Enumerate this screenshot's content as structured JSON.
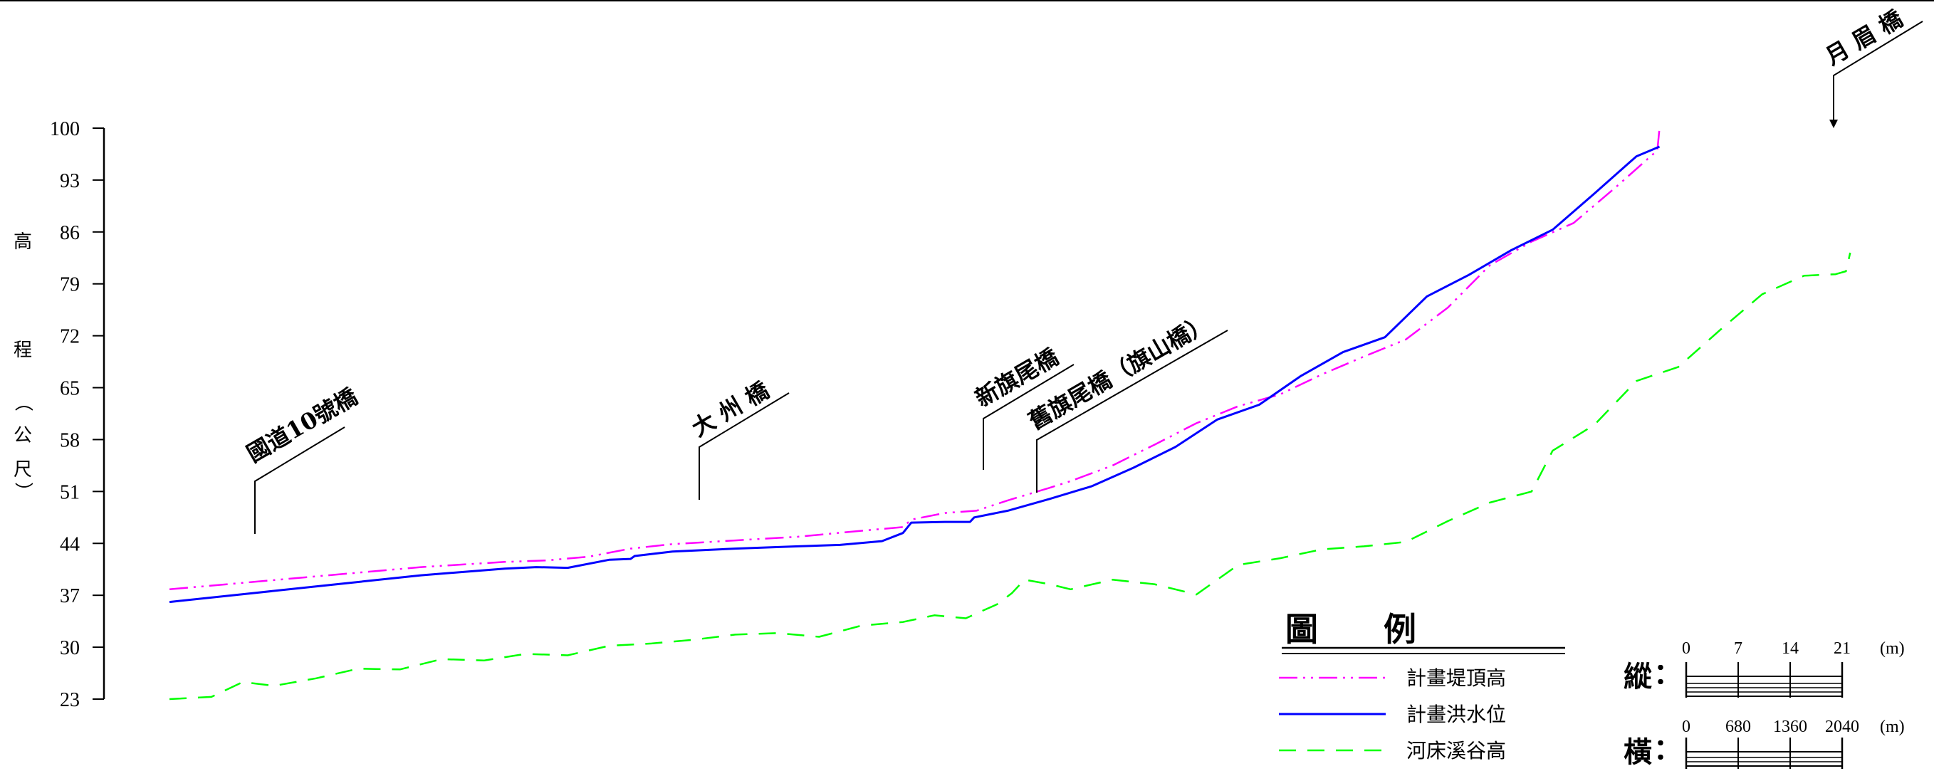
{
  "chart_data": {
    "type": "line",
    "title": "",
    "ylabel": "高程（公尺）",
    "ylabel_chars": [
      "高",
      "程",
      "（",
      "公",
      "尺",
      "）"
    ],
    "ylim": [
      23,
      100
    ],
    "yticks": [
      23,
      30,
      37,
      44,
      51,
      58,
      65,
      72,
      79,
      86,
      93,
      100
    ],
    "grid": false,
    "legend_position": "bottom-right",
    "series": [
      {
        "name": "計畫堤頂高",
        "color": "#ff00ff",
        "style": "dash-dot-dot",
        "points": [
          [
            0,
            37.8
          ],
          [
            4,
            38.8
          ],
          [
            8,
            39.8
          ],
          [
            12,
            40.8
          ],
          [
            16,
            41.5
          ],
          [
            18,
            41.7
          ],
          [
            20,
            42.2
          ],
          [
            22,
            43.3
          ],
          [
            24,
            43.9
          ],
          [
            27,
            44.4
          ],
          [
            30,
            44.9
          ],
          [
            33,
            45.7
          ],
          [
            35,
            46.2
          ],
          [
            35.4,
            47.2
          ],
          [
            37,
            48.1
          ],
          [
            38.5,
            48.4
          ],
          [
            40,
            49.8
          ],
          [
            42,
            51.5
          ],
          [
            43,
            52.4
          ],
          [
            45,
            54.5
          ],
          [
            47,
            57.3
          ],
          [
            49,
            60.2
          ],
          [
            51,
            62.5
          ],
          [
            53,
            64.1
          ],
          [
            55,
            66.8
          ],
          [
            57,
            69.2
          ],
          [
            59,
            71.5
          ],
          [
            61,
            75.8
          ],
          [
            63,
            81.5
          ],
          [
            65,
            84.7
          ],
          [
            67,
            87.2
          ],
          [
            69,
            92.0
          ],
          [
            71,
            97.0
          ],
          [
            71.1,
            100.0
          ]
        ]
      },
      {
        "name": "計畫洪水位",
        "color": "#0000ff",
        "style": "solid",
        "points": [
          [
            0,
            36.1
          ],
          [
            4,
            37.3
          ],
          [
            8,
            38.5
          ],
          [
            12,
            39.7
          ],
          [
            16,
            40.6
          ],
          [
            17.5,
            40.8
          ],
          [
            19,
            40.7
          ],
          [
            21,
            41.8
          ],
          [
            22,
            41.9
          ],
          [
            22.2,
            42.3
          ],
          [
            24,
            42.9
          ],
          [
            27,
            43.3
          ],
          [
            30,
            43.6
          ],
          [
            32,
            43.8
          ],
          [
            34,
            44.3
          ],
          [
            35,
            45.4
          ],
          [
            35.4,
            46.8
          ],
          [
            37,
            46.9
          ],
          [
            38.2,
            46.9
          ],
          [
            38.4,
            47.5
          ],
          [
            40,
            48.4
          ],
          [
            42,
            50.0
          ],
          [
            44,
            51.7
          ],
          [
            46,
            54.2
          ],
          [
            48,
            57.0
          ],
          [
            50,
            60.7
          ],
          [
            52,
            62.7
          ],
          [
            54,
            66.6
          ],
          [
            56,
            69.8
          ],
          [
            58,
            71.8
          ],
          [
            60,
            77.3
          ],
          [
            62,
            80.2
          ],
          [
            64,
            83.5
          ],
          [
            66,
            86.3
          ],
          [
            68,
            91.2
          ],
          [
            70,
            96.2
          ],
          [
            71.1,
            97.5
          ]
        ]
      },
      {
        "name": "河床溪谷高",
        "color": "#00ff00",
        "style": "dashed",
        "points": [
          [
            0,
            23.0
          ],
          [
            2,
            23.3
          ],
          [
            3.5,
            25.3
          ],
          [
            5,
            24.8
          ],
          [
            7,
            25.8
          ],
          [
            9,
            27.1
          ],
          [
            11,
            27.0
          ],
          [
            13,
            28.4
          ],
          [
            15,
            28.2
          ],
          [
            17,
            29.1
          ],
          [
            19,
            28.9
          ],
          [
            21,
            30.2
          ],
          [
            23,
            30.5
          ],
          [
            25,
            31.0
          ],
          [
            27,
            31.7
          ],
          [
            29,
            31.9
          ],
          [
            31,
            31.4
          ],
          [
            33,
            32.9
          ],
          [
            35,
            33.4
          ],
          [
            36.5,
            34.3
          ],
          [
            38,
            33.9
          ],
          [
            39.5,
            35.8
          ],
          [
            40.2,
            37.3
          ],
          [
            40.8,
            39.1
          ],
          [
            42,
            38.5
          ],
          [
            43,
            37.8
          ],
          [
            45,
            39.1
          ],
          [
            47,
            38.5
          ],
          [
            49,
            37.1
          ],
          [
            51,
            41.1
          ],
          [
            53,
            42.0
          ],
          [
            55,
            43.2
          ],
          [
            57,
            43.6
          ],
          [
            59,
            44.2
          ],
          [
            61,
            47.0
          ],
          [
            63,
            49.5
          ],
          [
            65,
            51.0
          ],
          [
            66,
            56.5
          ],
          [
            68,
            60.0
          ],
          [
            70,
            65.9
          ],
          [
            72,
            67.8
          ],
          [
            74,
            72.8
          ],
          [
            76,
            77.6
          ],
          [
            78,
            80.1
          ],
          [
            79.5,
            80.3
          ],
          [
            80,
            80.7
          ],
          [
            80.2,
            83.2
          ]
        ]
      }
    ],
    "annotations": [
      {
        "text": "國道10號橋",
        "x": 4
      },
      {
        "text": "大 州 橋",
        "x": 22
      },
      {
        "text": "新旗尾橋",
        "x": 35.6
      },
      {
        "text": "舊旗尾橋（旗山橋）",
        "x": 37.8
      },
      {
        "text": "月 眉 橋",
        "x": 71.1
      }
    ]
  },
  "legend": {
    "title": "圖　　例",
    "items": [
      {
        "label": "計畫堤頂高",
        "color": "#ff00ff",
        "style": "dash-dot-dot"
      },
      {
        "label": "計畫洪水位",
        "color": "#0000ff",
        "style": "solid"
      },
      {
        "label": "河床溪谷高",
        "color": "#00ff00",
        "style": "dashed"
      }
    ]
  },
  "scales": {
    "vertical": {
      "label": "縱",
      "colon": "：",
      "ticks": [
        "0",
        "7",
        "14",
        "21"
      ],
      "unit": "(m)"
    },
    "horizontal": {
      "label": "橫",
      "colon": "：",
      "ticks": [
        "0",
        "680",
        "1360",
        "2040"
      ],
      "unit": "(m)"
    }
  }
}
